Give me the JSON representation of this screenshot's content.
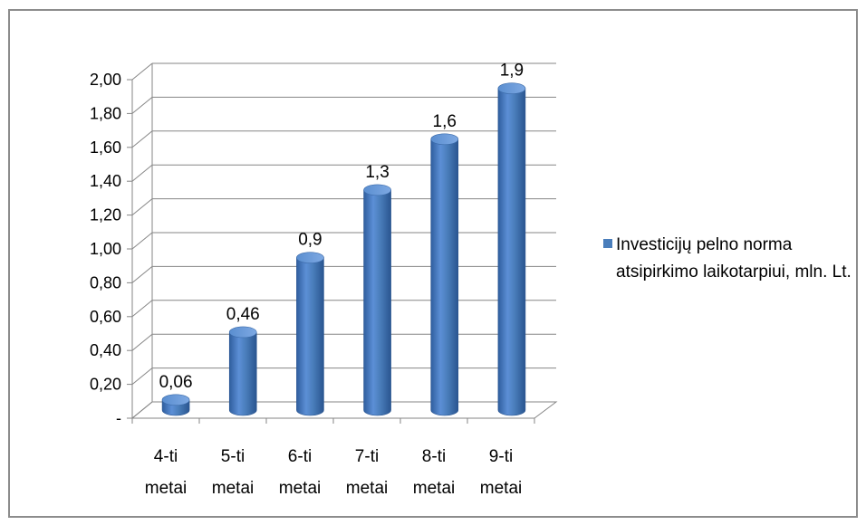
{
  "chart_data": {
    "type": "bar",
    "categories": [
      "4-ti metai",
      "5-ti metai",
      "6-ti metai",
      "7-ti metai",
      "8-ti metai",
      "9-ti metai"
    ],
    "category_lines": [
      [
        "4-ti",
        "metai"
      ],
      [
        "5-ti",
        "metai"
      ],
      [
        "6-ti",
        "metai"
      ],
      [
        "7-ti",
        "metai"
      ],
      [
        "8-ti",
        "metai"
      ],
      [
        "9-ti",
        "metai"
      ]
    ],
    "series": [
      {
        "name": "Investicijų pelno norma atsipirkimo laikotarpiui, mln. Lt.",
        "values": [
          0.06,
          0.46,
          0.9,
          1.3,
          1.6,
          1.9
        ],
        "data_labels": [
          "0,06",
          "0,46",
          "0,9",
          "1,3",
          "1,6",
          "1,9"
        ],
        "color": "#4a7ebb"
      }
    ],
    "ylim": [
      0,
      2
    ],
    "yticks": [
      0,
      0.2,
      0.4,
      0.6,
      0.8,
      1.0,
      1.2,
      1.4,
      1.6,
      1.8,
      2.0
    ],
    "ytick_labels": [
      "-",
      "0,20",
      "0,40",
      "0,60",
      "0,80",
      "1,00",
      "1,20",
      "1,40",
      "1,60",
      "1,80",
      "2,00"
    ],
    "grid": true,
    "style": "3d-cylinder",
    "legend_position": "right",
    "title": "",
    "xlabel": "",
    "ylabel": ""
  }
}
